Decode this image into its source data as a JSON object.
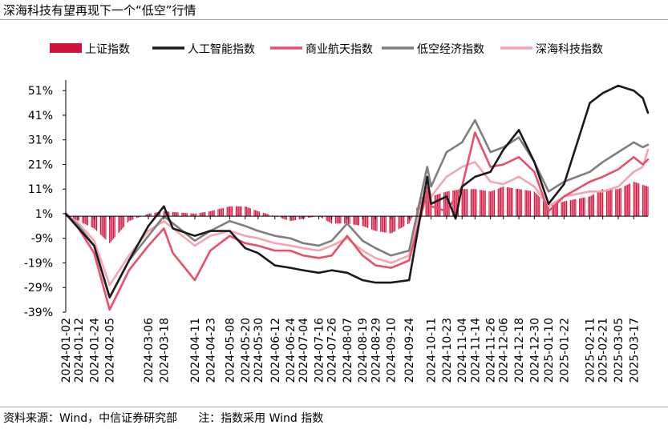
{
  "title": "深海科技有望再现下一个“低空”行情",
  "footer": {
    "source": "资料来源：Wind，中信证券研究部",
    "note": "注：指数采用 Wind 指数"
  },
  "colors": {
    "sh_bar": "#d2143c",
    "ai": "#1a1a1a",
    "aero": "#e8506a",
    "lowalt": "#7f7f7f",
    "deepsea": "#f2a6b0",
    "axis": "#000000"
  },
  "chart_data": {
    "type": "line",
    "title": "",
    "xlabel": "",
    "ylabel": "",
    "ylim": [
      -39,
      54
    ],
    "yticks": [
      51,
      41,
      31,
      21,
      11,
      1,
      -9,
      -19,
      -29,
      -39
    ],
    "ytick_labels": [
      "51%",
      "41%",
      "31%",
      "21%",
      "11%",
      "1%",
      "-9%",
      "-19%",
      "-29%",
      "-39%"
    ],
    "x_start": "2024-01-02",
    "x_end": "2025-03-28",
    "x_tick_labels": [
      "2024-01-02",
      "2024-01-12",
      "2024-01-24",
      "2024-02-05",
      "2024-03-06",
      "2024-03-18",
      "2024-04-11",
      "2024-04-23",
      "2024-05-08",
      "2024-05-20",
      "2024-05-30",
      "2024-06-12",
      "2024-06-24",
      "2024-07-04",
      "2024-07-16",
      "2024-07-26",
      "2024-08-07",
      "2024-08-19",
      "2024-08-29",
      "2024-09-10",
      "2024-09-24",
      "2024-10-11",
      "2024-10-23",
      "2024-11-04",
      "2024-11-14",
      "2024-11-26",
      "2024-12-06",
      "2024-12-18",
      "2024-12-30",
      "2025-01-10",
      "2025-01-22",
      "2025-02-11",
      "2025-02-21",
      "2025-03-05",
      "2025-03-17"
    ],
    "legend": [
      "上证指数",
      "人工智能指数",
      "商业航天指数",
      "低空经济指数",
      "深海科技指数"
    ],
    "legend_position": "top",
    "series": [
      {
        "name": "上证指数",
        "kind": "bar",
        "color_key": "sh_bar",
        "points": [
          [
            "2024-01-02",
            0
          ],
          [
            "2024-01-12",
            -2
          ],
          [
            "2024-01-24",
            -5
          ],
          [
            "2024-02-05",
            -11
          ],
          [
            "2024-02-20",
            -2
          ],
          [
            "2024-03-06",
            1
          ],
          [
            "2024-03-18",
            2
          ],
          [
            "2024-04-11",
            1
          ],
          [
            "2024-04-23",
            2
          ],
          [
            "2024-05-08",
            4
          ],
          [
            "2024-05-20",
            4
          ],
          [
            "2024-05-30",
            2
          ],
          [
            "2024-06-12",
            0
          ],
          [
            "2024-06-24",
            -2
          ],
          [
            "2024-07-04",
            -1
          ],
          [
            "2024-07-16",
            0
          ],
          [
            "2024-07-26",
            -3
          ],
          [
            "2024-08-07",
            -3
          ],
          [
            "2024-08-19",
            -4
          ],
          [
            "2024-08-29",
            -6
          ],
          [
            "2024-09-10",
            -7
          ],
          [
            "2024-09-24",
            -3
          ],
          [
            "2024-10-08",
            12
          ],
          [
            "2024-10-11",
            8
          ],
          [
            "2024-10-23",
            10
          ],
          [
            "2024-11-04",
            11
          ],
          [
            "2024-11-14",
            11
          ],
          [
            "2024-11-26",
            10
          ],
          [
            "2024-12-06",
            12
          ],
          [
            "2024-12-18",
            11
          ],
          [
            "2024-12-30",
            10
          ],
          [
            "2025-01-10",
            4
          ],
          [
            "2025-01-22",
            6
          ],
          [
            "2025-02-11",
            8
          ],
          [
            "2025-02-21",
            11
          ],
          [
            "2025-03-05",
            11
          ],
          [
            "2025-03-17",
            14
          ],
          [
            "2025-03-28",
            12
          ]
        ]
      },
      {
        "name": "人工智能指数",
        "kind": "line",
        "color_key": "ai",
        "points": [
          [
            "2024-01-02",
            1
          ],
          [
            "2024-01-12",
            -5
          ],
          [
            "2024-01-24",
            -12
          ],
          [
            "2024-02-05",
            -33
          ],
          [
            "2024-02-20",
            -18
          ],
          [
            "2024-03-06",
            -4
          ],
          [
            "2024-03-18",
            4
          ],
          [
            "2024-03-25",
            -5
          ],
          [
            "2024-04-11",
            -8
          ],
          [
            "2024-04-23",
            -6
          ],
          [
            "2024-05-08",
            -6
          ],
          [
            "2024-05-20",
            -13
          ],
          [
            "2024-05-30",
            -15
          ],
          [
            "2024-06-12",
            -20
          ],
          [
            "2024-06-24",
            -21
          ],
          [
            "2024-07-04",
            -22
          ],
          [
            "2024-07-16",
            -23
          ],
          [
            "2024-07-26",
            -22
          ],
          [
            "2024-08-07",
            -23
          ],
          [
            "2024-08-19",
            -26
          ],
          [
            "2024-08-29",
            -27
          ],
          [
            "2024-09-10",
            -27
          ],
          [
            "2024-09-24",
            -26
          ],
          [
            "2024-10-08",
            16
          ],
          [
            "2024-10-11",
            5
          ],
          [
            "2024-10-23",
            8
          ],
          [
            "2024-10-30",
            -1
          ],
          [
            "2024-11-04",
            12
          ],
          [
            "2024-11-14",
            16
          ],
          [
            "2024-11-26",
            18
          ],
          [
            "2024-12-06",
            27
          ],
          [
            "2024-12-18",
            35
          ],
          [
            "2024-12-30",
            22
          ],
          [
            "2025-01-10",
            5
          ],
          [
            "2025-01-22",
            13
          ],
          [
            "2025-02-11",
            46
          ],
          [
            "2025-02-21",
            50
          ],
          [
            "2025-03-05",
            53
          ],
          [
            "2025-03-17",
            51
          ],
          [
            "2025-03-24",
            48
          ],
          [
            "2025-03-28",
            42
          ]
        ]
      },
      {
        "name": "商业航天指数",
        "kind": "line",
        "color_key": "aero",
        "points": [
          [
            "2024-01-02",
            1
          ],
          [
            "2024-01-12",
            -5
          ],
          [
            "2024-01-24",
            -15
          ],
          [
            "2024-02-05",
            -38
          ],
          [
            "2024-02-20",
            -22
          ],
          [
            "2024-03-06",
            -12
          ],
          [
            "2024-03-18",
            -5
          ],
          [
            "2024-03-25",
            -15
          ],
          [
            "2024-04-11",
            -26
          ],
          [
            "2024-04-23",
            -14
          ],
          [
            "2024-05-08",
            -8
          ],
          [
            "2024-05-20",
            -11
          ],
          [
            "2024-05-30",
            -12
          ],
          [
            "2024-06-12",
            -14
          ],
          [
            "2024-06-24",
            -14
          ],
          [
            "2024-07-04",
            -16
          ],
          [
            "2024-07-16",
            -17
          ],
          [
            "2024-07-26",
            -16
          ],
          [
            "2024-08-07",
            -8
          ],
          [
            "2024-08-19",
            -16
          ],
          [
            "2024-08-29",
            -20
          ],
          [
            "2024-09-10",
            -21
          ],
          [
            "2024-09-24",
            -18
          ],
          [
            "2024-10-08",
            10
          ],
          [
            "2024-10-11",
            4
          ],
          [
            "2024-10-23",
            2
          ],
          [
            "2024-11-04",
            12
          ],
          [
            "2024-11-14",
            34
          ],
          [
            "2024-11-26",
            20
          ],
          [
            "2024-12-06",
            21
          ],
          [
            "2024-12-18",
            24
          ],
          [
            "2024-12-30",
            18
          ],
          [
            "2025-01-10",
            2
          ],
          [
            "2025-01-22",
            8
          ],
          [
            "2025-02-11",
            14
          ],
          [
            "2025-02-21",
            16
          ],
          [
            "2025-03-05",
            19
          ],
          [
            "2025-03-17",
            24
          ],
          [
            "2025-03-24",
            21
          ],
          [
            "2025-03-28",
            23
          ]
        ]
      },
      {
        "name": "低空经济指数",
        "kind": "line",
        "color_key": "lowalt",
        "points": [
          [
            "2024-01-02",
            1
          ],
          [
            "2024-01-12",
            -4
          ],
          [
            "2024-01-24",
            -12
          ],
          [
            "2024-02-05",
            -33
          ],
          [
            "2024-02-20",
            -18
          ],
          [
            "2024-03-06",
            -8
          ],
          [
            "2024-03-18",
            0
          ],
          [
            "2024-04-11",
            -10
          ],
          [
            "2024-04-23",
            -6
          ],
          [
            "2024-05-08",
            -2
          ],
          [
            "2024-05-20",
            -4
          ],
          [
            "2024-05-30",
            -6
          ],
          [
            "2024-06-12",
            -8
          ],
          [
            "2024-06-24",
            -9
          ],
          [
            "2024-07-04",
            -11
          ],
          [
            "2024-07-16",
            -12
          ],
          [
            "2024-07-26",
            -10
          ],
          [
            "2024-08-07",
            -3
          ],
          [
            "2024-08-19",
            -10
          ],
          [
            "2024-08-29",
            -13
          ],
          [
            "2024-09-10",
            -16
          ],
          [
            "2024-09-24",
            -14
          ],
          [
            "2024-10-08",
            20
          ],
          [
            "2024-10-11",
            12
          ],
          [
            "2024-10-23",
            26
          ],
          [
            "2024-11-04",
            30
          ],
          [
            "2024-11-14",
            39
          ],
          [
            "2024-11-26",
            26
          ],
          [
            "2024-12-06",
            28
          ],
          [
            "2024-12-18",
            32
          ],
          [
            "2024-12-30",
            22
          ],
          [
            "2025-01-10",
            10
          ],
          [
            "2025-01-22",
            14
          ],
          [
            "2025-02-11",
            18
          ],
          [
            "2025-02-21",
            22
          ],
          [
            "2025-03-05",
            26
          ],
          [
            "2025-03-17",
            30
          ],
          [
            "2025-03-24",
            28
          ],
          [
            "2025-03-28",
            29
          ]
        ]
      },
      {
        "name": "深海科技指数",
        "kind": "line",
        "color_key": "deepsea",
        "points": [
          [
            "2024-01-02",
            1
          ],
          [
            "2024-01-12",
            -3
          ],
          [
            "2024-01-24",
            -10
          ],
          [
            "2024-02-05",
            -28
          ],
          [
            "2024-02-20",
            -16
          ],
          [
            "2024-03-06",
            -6
          ],
          [
            "2024-03-18",
            -2
          ],
          [
            "2024-04-11",
            -12
          ],
          [
            "2024-04-23",
            -8
          ],
          [
            "2024-05-08",
            -6
          ],
          [
            "2024-05-20",
            -8
          ],
          [
            "2024-05-30",
            -9
          ],
          [
            "2024-06-12",
            -11
          ],
          [
            "2024-06-24",
            -12
          ],
          [
            "2024-07-04",
            -13
          ],
          [
            "2024-07-16",
            -14
          ],
          [
            "2024-07-26",
            -12
          ],
          [
            "2024-08-07",
            -9
          ],
          [
            "2024-08-19",
            -14
          ],
          [
            "2024-08-29",
            -17
          ],
          [
            "2024-09-10",
            -19
          ],
          [
            "2024-09-24",
            -16
          ],
          [
            "2024-10-08",
            14
          ],
          [
            "2024-10-11",
            8
          ],
          [
            "2024-10-23",
            16
          ],
          [
            "2024-11-04",
            20
          ],
          [
            "2024-11-14",
            22
          ],
          [
            "2024-11-26",
            14
          ],
          [
            "2024-12-06",
            13
          ],
          [
            "2024-12-18",
            16
          ],
          [
            "2024-12-30",
            12
          ],
          [
            "2025-01-10",
            4
          ],
          [
            "2025-01-22",
            8
          ],
          [
            "2025-02-11",
            10
          ],
          [
            "2025-02-21",
            10
          ],
          [
            "2025-03-05",
            12
          ],
          [
            "2025-03-17",
            18
          ],
          [
            "2025-03-24",
            20
          ],
          [
            "2025-03-28",
            27
          ]
        ]
      }
    ]
  }
}
